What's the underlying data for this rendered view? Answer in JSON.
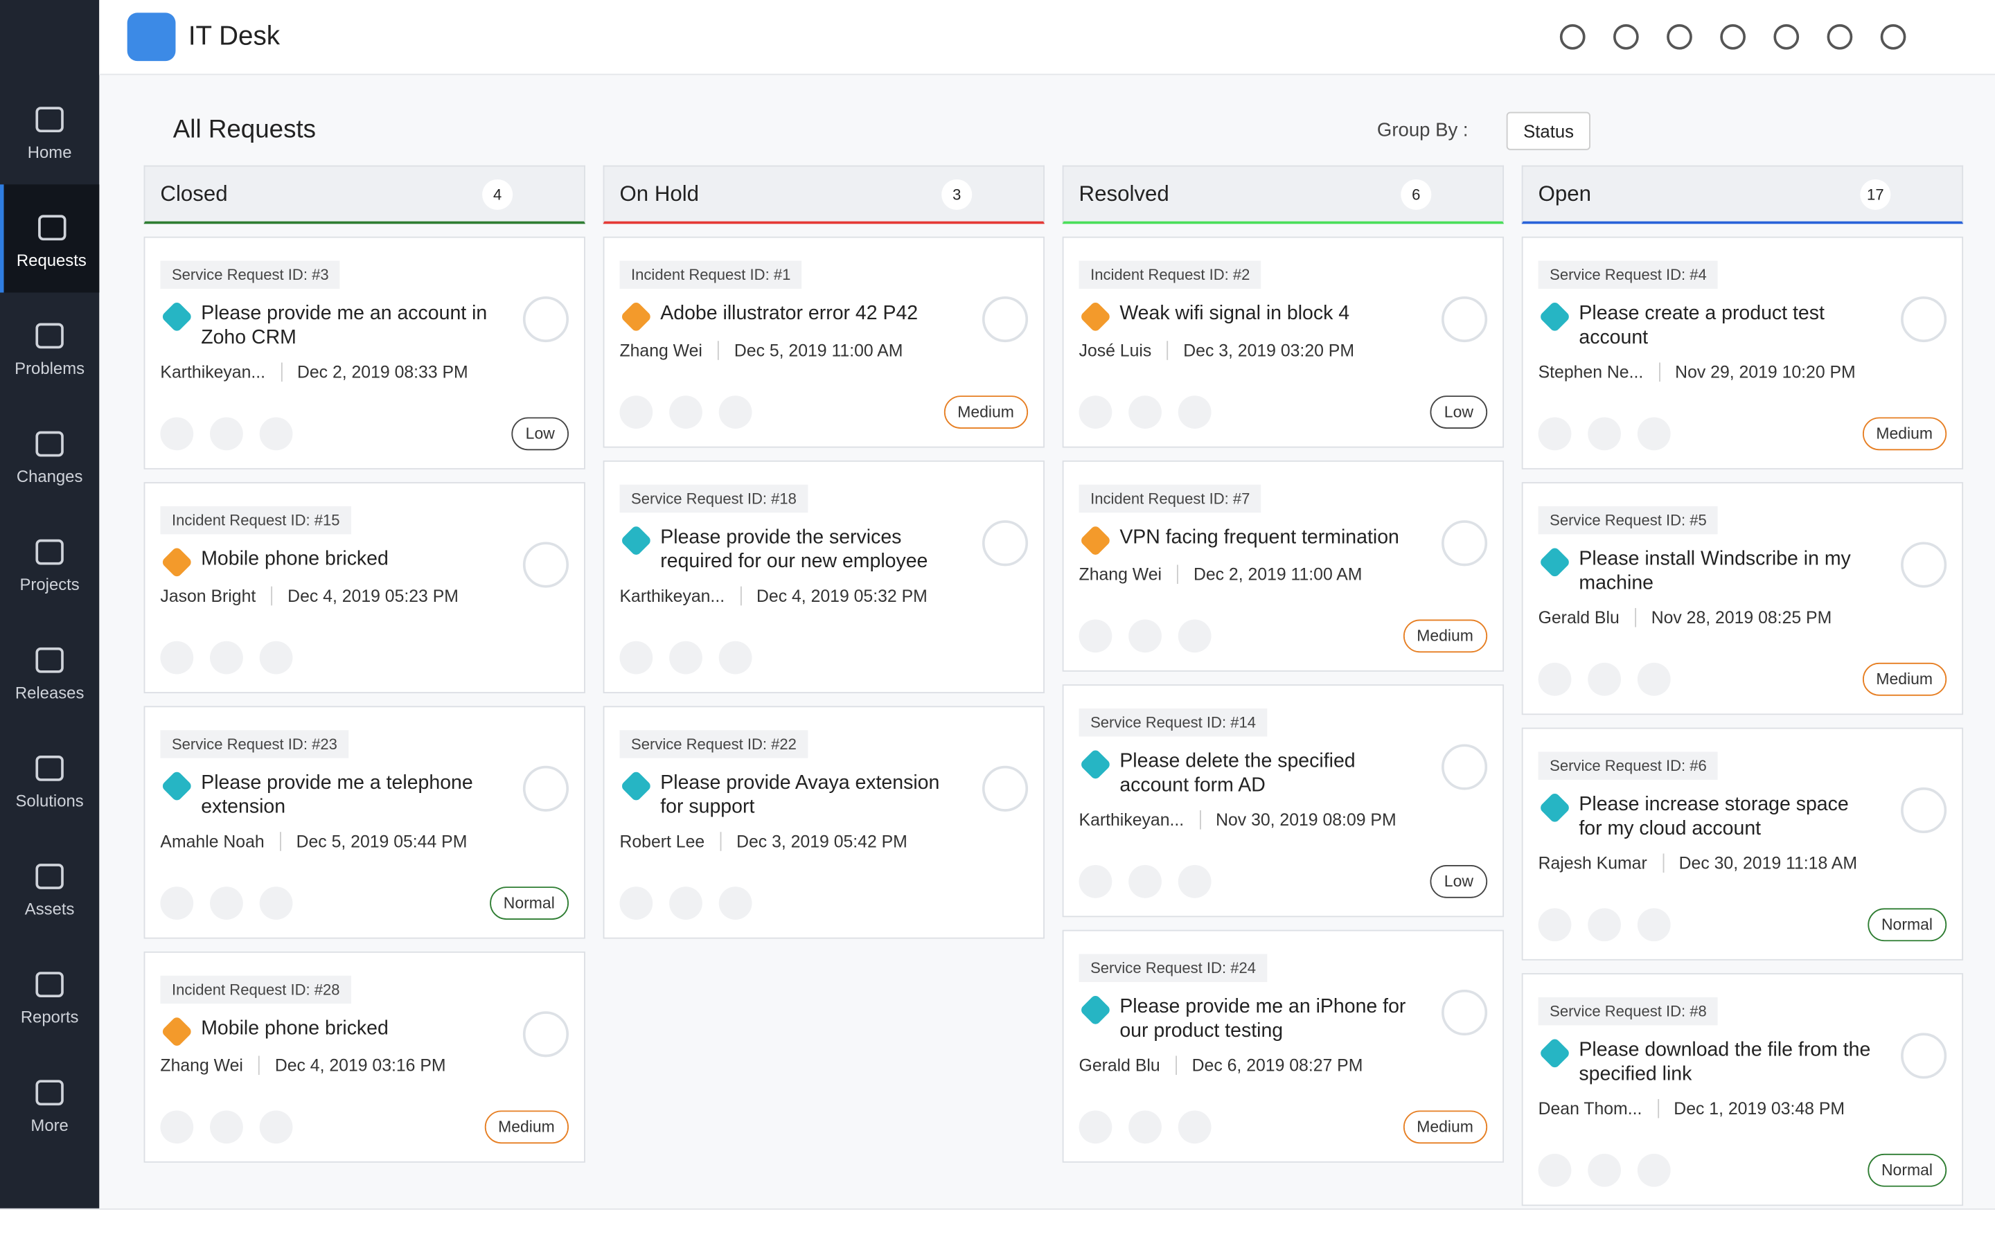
{
  "header": {
    "title": "IT Desk"
  },
  "sidebar": {
    "items": [
      "Home",
      "Requests",
      "Problems",
      "Changes",
      "Projects",
      "Releases",
      "Solutions",
      "Assets",
      "Reports",
      "More"
    ],
    "active": 1
  },
  "toolbar": {
    "view": "All Requests",
    "group_by_label": "Group By :",
    "group_by_value": "Status"
  },
  "columns": [
    {
      "name": "Closed",
      "count": 4,
      "color": "#2e7d32",
      "cards": [
        {
          "id_label": "Service Request ID: #3",
          "title": "Please provide me an account in Zoho CRM",
          "requester": "Karthikeyan...",
          "date": "Dec 2, 2019 08:33 PM",
          "priority": "Low",
          "priority_color": "#444",
          "icon_color": "#26b5c4"
        },
        {
          "id_label": "Incident Request ID: #15",
          "title": "Mobile phone bricked",
          "requester": "Jason Bright",
          "date": "Dec 4, 2019 05:23 PM",
          "icon_color": "#f39a2b"
        },
        {
          "id_label": "Service Request ID: #23",
          "title": "Please provide me a telephone extension",
          "requester": "Amahle Noah",
          "date": "Dec 5, 2019 05:44 PM",
          "priority": "Normal",
          "priority_color": "#2e7d32",
          "icon_color": "#26b5c4"
        },
        {
          "id_label": "Incident Request ID: #28",
          "title": "Mobile phone bricked",
          "requester": "Zhang Wei",
          "date": "Dec 4, 2019 03:16 PM",
          "priority": "Medium",
          "priority_color": "#e67e22",
          "icon_color": "#f39a2b"
        }
      ]
    },
    {
      "name": "On Hold",
      "count": 3,
      "color": "#e53935",
      "cards": [
        {
          "id_label": "Incident Request ID: #1",
          "title": "Adobe illustrator error 42 P42",
          "requester": "Zhang Wei",
          "date": "Dec 5, 2019 11:00 AM",
          "priority": "Medium",
          "priority_color": "#e67e22",
          "icon_color": "#f39a2b"
        },
        {
          "id_label": "Service Request ID: #18",
          "title": "Please provide the services required for our new employee",
          "requester": "Karthikeyan...",
          "date": "Dec 4, 2019 05:32 PM",
          "icon_color": "#26b5c4"
        },
        {
          "id_label": "Service Request ID: #22",
          "title": "Please provide Avaya extension for support",
          "requester": "Robert Lee",
          "date": "Dec 3, 2019 05:42 PM",
          "icon_color": "#26b5c4"
        }
      ]
    },
    {
      "name": "Resolved",
      "count": 6,
      "color": "#4ade5a",
      "cards": [
        {
          "id_label": "Incident Request ID: #2",
          "title": "Weak wifi signal in block 4",
          "requester": "José Luis",
          "date": "Dec 3, 2019 03:20 PM",
          "priority": "Low",
          "priority_color": "#444",
          "icon_color": "#f39a2b"
        },
        {
          "id_label": "Incident Request ID: #7",
          "title": "VPN facing frequent termination",
          "requester": "Zhang Wei",
          "date": "Dec 2, 2019 11:00 AM",
          "priority": "Medium",
          "priority_color": "#e67e22",
          "icon_color": "#f39a2b"
        },
        {
          "id_label": "Service Request ID: #14",
          "title": "Please delete the specified account form AD",
          "requester": "Karthikeyan...",
          "date": "Nov 30, 2019 08:09 PM",
          "priority": "Low",
          "priority_color": "#444",
          "icon_color": "#26b5c4"
        },
        {
          "id_label": "Service Request ID: #24",
          "title": "Please provide me an iPhone for our product testing",
          "requester": "Gerald Blu",
          "date": "Dec 6, 2019 08:27 PM",
          "priority": "Medium",
          "priority_color": "#e67e22",
          "icon_color": "#26b5c4"
        }
      ]
    },
    {
      "name": "Open",
      "count": 17,
      "color": "#2962d9",
      "cards": [
        {
          "id_label": "Service Request ID: #4",
          "title": "Please create a product test account",
          "requester": "Stephen Ne...",
          "date": "Nov 29, 2019 10:20 PM",
          "priority": "Medium",
          "priority_color": "#e67e22",
          "icon_color": "#26b5c4"
        },
        {
          "id_label": "Service Request ID: #5",
          "title": "Please install Windscribe in my machine",
          "requester": "Gerald Blu",
          "date": "Nov 28, 2019 08:25 PM",
          "priority": "Medium",
          "priority_color": "#e67e22",
          "icon_color": "#26b5c4"
        },
        {
          "id_label": "Service Request ID: #6",
          "title": "Please increase storage space for my cloud account",
          "requester": "Rajesh Kumar",
          "date": "Dec 30, 2019 11:18 AM",
          "priority": "Normal",
          "priority_color": "#2e7d32",
          "icon_color": "#26b5c4"
        },
        {
          "id_label": "Service Request ID: #8",
          "title": "Please download the file from the specified link",
          "requester": "Dean Thom...",
          "date": "Dec 1, 2019 03:48 PM",
          "priority": "Normal",
          "priority_color": "#2e7d32",
          "icon_color": "#26b5c4"
        }
      ]
    }
  ]
}
